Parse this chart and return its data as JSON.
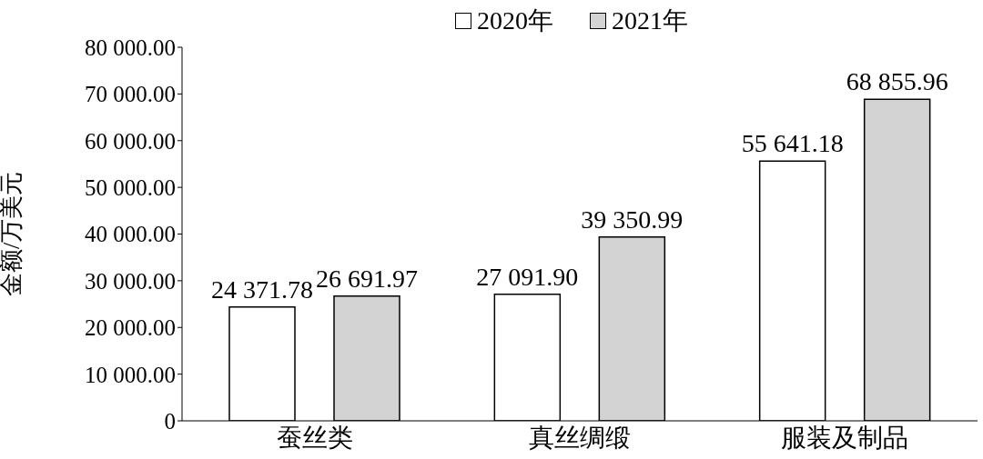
{
  "chart_data": {
    "type": "bar",
    "ylabel": "金额/万美元",
    "categories": [
      "蚕丝类",
      "真丝绸缎",
      "服装及制品"
    ],
    "series": [
      {
        "name": "2020年",
        "color": "#ffffff",
        "values": [
          24371.78,
          27091.9,
          55641.18
        ],
        "value_labels": [
          "24 371.78",
          "27 091.90",
          "55 641.18"
        ]
      },
      {
        "name": "2021年",
        "color": "#d3d3d3",
        "values": [
          26691.97,
          39350.99,
          68855.96
        ],
        "value_labels": [
          "26 691.97",
          "39 350.99",
          "68 855.96"
        ]
      }
    ],
    "ylim": [
      0,
      80000
    ],
    "yticks": [
      0,
      {
        "value": 10000,
        "label": "10 000.00"
      },
      {
        "value": 20000,
        "label": "20 000.00"
      },
      {
        "value": 30000,
        "label": "30 000.00"
      },
      {
        "value": 40000,
        "label": "40 000.00"
      },
      {
        "value": 50000,
        "label": "50 000.00"
      },
      {
        "value": 60000,
        "label": "60 000.00"
      },
      {
        "value": 70000,
        "label": "70 000.00"
      },
      {
        "value": 80000,
        "label": "80 000.00"
      }
    ],
    "grid": false,
    "legend": "top"
  }
}
